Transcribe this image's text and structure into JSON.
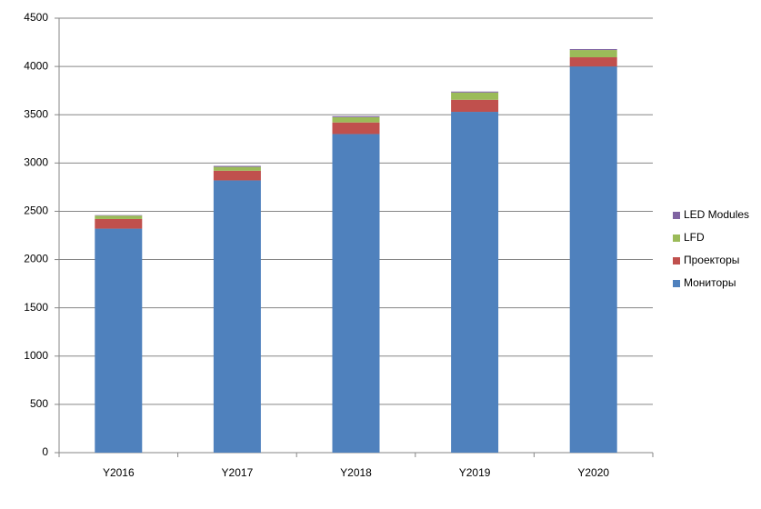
{
  "chart_data": {
    "type": "stacked_bar",
    "categories": [
      "Y2016",
      "Y2017",
      "Y2018",
      "Y2019",
      "Y2020"
    ],
    "series": [
      {
        "name": "Мониторы",
        "color": "#4f81bd",
        "values": [
          2320,
          2820,
          3300,
          3530,
          4000
        ]
      },
      {
        "name": "Проекторы",
        "color": "#c0504d",
        "values": [
          100,
          100,
          120,
          125,
          95
        ]
      },
      {
        "name": "LFD",
        "color": "#9bbb59",
        "values": [
          35,
          40,
          55,
          75,
          75
        ]
      },
      {
        "name": "LED Modules",
        "color": "#8064a2",
        "values": [
          5,
          10,
          10,
          10,
          10
        ]
      }
    ],
    "ylim": [
      0,
      4500
    ],
    "yticks": [
      0,
      500,
      1000,
      1500,
      2000,
      2500,
      3000,
      3500,
      4000,
      4500
    ],
    "grid": true,
    "legend": "right"
  }
}
